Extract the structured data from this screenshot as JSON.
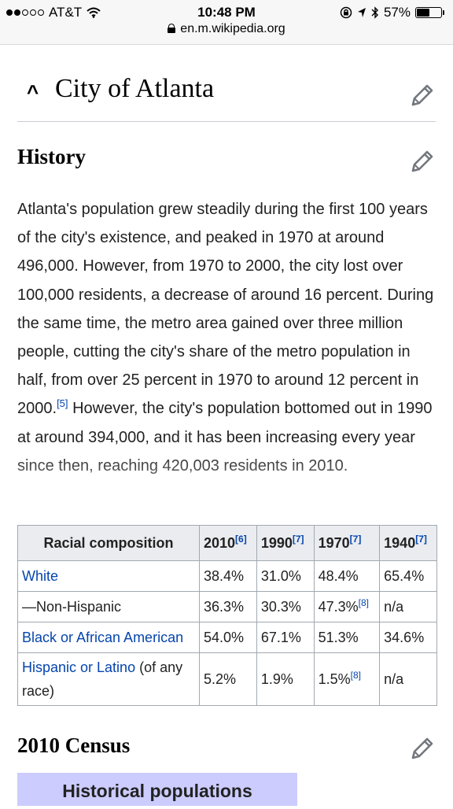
{
  "status_bar": {
    "carrier": "AT&T",
    "time": "10:48 PM",
    "battery": "57%",
    "battery_level": 0.57,
    "url": "en.m.wikipedia.org"
  },
  "page_title": "City of Atlanta",
  "history": {
    "heading": "History",
    "paragraph_parts": [
      "Atlanta's population grew steadily during the first 100 years of the city's existence, and peaked in 1970 at around 496,000. However, from 1970 to 2000, the city lost over 100,000 residents, a decrease of around 16 percent. During the same time, the metro area gained over three million people, cutting the city's share of the metro population in half, from over 25 percent in 1970 to around 12 percent in 2000.",
      "[5]",
      " However, the city's population bottomed out in 1990 at around 394,000, and it has been increasing every year since then, reaching 420,003 residents in 2010."
    ]
  },
  "table": {
    "header_label": "Racial composition",
    "years": [
      {
        "year": "2010",
        "ref": "[6]"
      },
      {
        "year": "1990",
        "ref": "[7]"
      },
      {
        "year": "1970",
        "ref": "[7]"
      },
      {
        "year": "1940",
        "ref": "[7]"
      }
    ],
    "rows": [
      {
        "label": "White",
        "label_suffix": "",
        "link": true,
        "values": [
          "38.4%",
          "31.0%",
          "48.4%",
          "65.4%"
        ],
        "refs": [
          "",
          "",
          "",
          ""
        ]
      },
      {
        "label": "—Non-Hispanic",
        "label_suffix": "",
        "link": false,
        "values": [
          "36.3%",
          "30.3%",
          "47.3%",
          "n/a"
        ],
        "refs": [
          "",
          "",
          "[8]",
          ""
        ]
      },
      {
        "label": "Black or African American",
        "label_suffix": "",
        "link": true,
        "values": [
          "54.0%",
          "67.1%",
          "51.3%",
          "34.6%"
        ],
        "refs": [
          "",
          "",
          "",
          ""
        ]
      },
      {
        "label": "Hispanic or Latino",
        "label_suffix": " (of any race)",
        "link": true,
        "values": [
          "5.2%",
          "1.9%",
          "1.5%",
          "n/a"
        ],
        "refs": [
          "",
          "",
          "[8]",
          ""
        ]
      }
    ]
  },
  "census": {
    "heading": "2010 Census",
    "box_title": "Historical populations"
  },
  "colors": {
    "link": "#0645ad",
    "box": "#ccccff"
  },
  "icons": {
    "edit": "pencil-icon",
    "collapse": "chevron-up-icon",
    "lock": "lock-icon",
    "wifi": "wifi-icon",
    "bluetooth": "bluetooth-icon",
    "location": "location-arrow-icon",
    "rotation_lock": "rotation-lock-icon"
  }
}
